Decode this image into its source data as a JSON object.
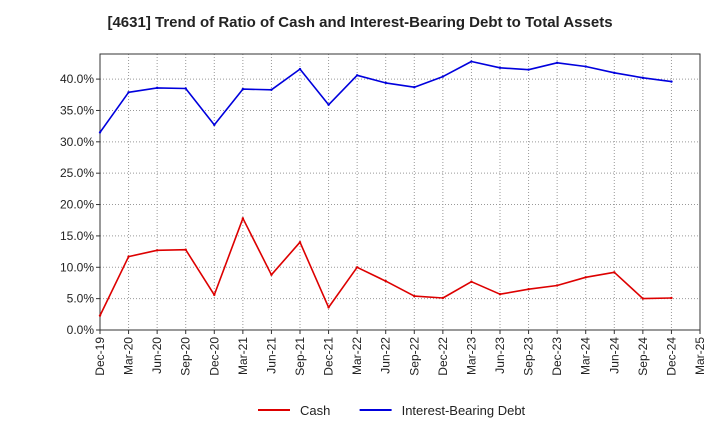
{
  "chart_data": {
    "type": "line",
    "title": "[4631]  Trend of Ratio of Cash and Interest-Bearing Debt to Total Assets",
    "xlabel": "",
    "ylabel": "",
    "ylim": [
      0,
      44
    ],
    "y_ticks": [
      0,
      5,
      10,
      15,
      20,
      25,
      30,
      35,
      40
    ],
    "y_tick_labels": [
      "0.0%",
      "5.0%",
      "10.0%",
      "15.0%",
      "20.0%",
      "25.0%",
      "30.0%",
      "35.0%",
      "40.0%"
    ],
    "x_tick_labels": [
      "Dec-19",
      "Mar-20",
      "Jun-20",
      "Sep-20",
      "Dec-20",
      "Mar-21",
      "Jun-21",
      "Sep-21",
      "Dec-21",
      "Mar-22",
      "Jun-22",
      "Sep-22",
      "Dec-22",
      "Mar-23",
      "Jun-23",
      "Sep-23",
      "Dec-23",
      "Mar-24",
      "Jun-24",
      "Sep-24",
      "Dec-24",
      "Mar-25"
    ],
    "categories": [
      "Dec-19",
      "Mar-20",
      "Jun-20",
      "Sep-20",
      "Dec-20",
      "Mar-21",
      "Jun-21",
      "Sep-21",
      "Dec-21",
      "Mar-22",
      "Jun-22",
      "Sep-22",
      "Dec-22",
      "Mar-23",
      "Jun-23",
      "Sep-23",
      "Dec-23",
      "Mar-24",
      "Jun-24",
      "Sep-24",
      "Dec-24"
    ],
    "series": [
      {
        "name": "Cash",
        "color": "#dd0000",
        "values": [
          2.3,
          11.7,
          12.7,
          12.8,
          5.6,
          17.8,
          8.8,
          14.0,
          3.6,
          10.0,
          7.8,
          5.4,
          5.1,
          7.7,
          5.7,
          6.5,
          7.1,
          8.4,
          9.2,
          5.0,
          5.1
        ]
      },
      {
        "name": "Interest-Bearing Debt",
        "color": "#0000dd",
        "values": [
          31.5,
          37.9,
          38.6,
          38.5,
          32.7,
          38.4,
          38.3,
          41.6,
          35.9,
          40.6,
          39.4,
          38.7,
          40.4,
          42.8,
          41.8,
          41.5,
          42.6,
          42.0,
          41.0,
          40.2,
          39.6
        ]
      }
    ],
    "grid": true,
    "legend_position": "bottom-center"
  }
}
